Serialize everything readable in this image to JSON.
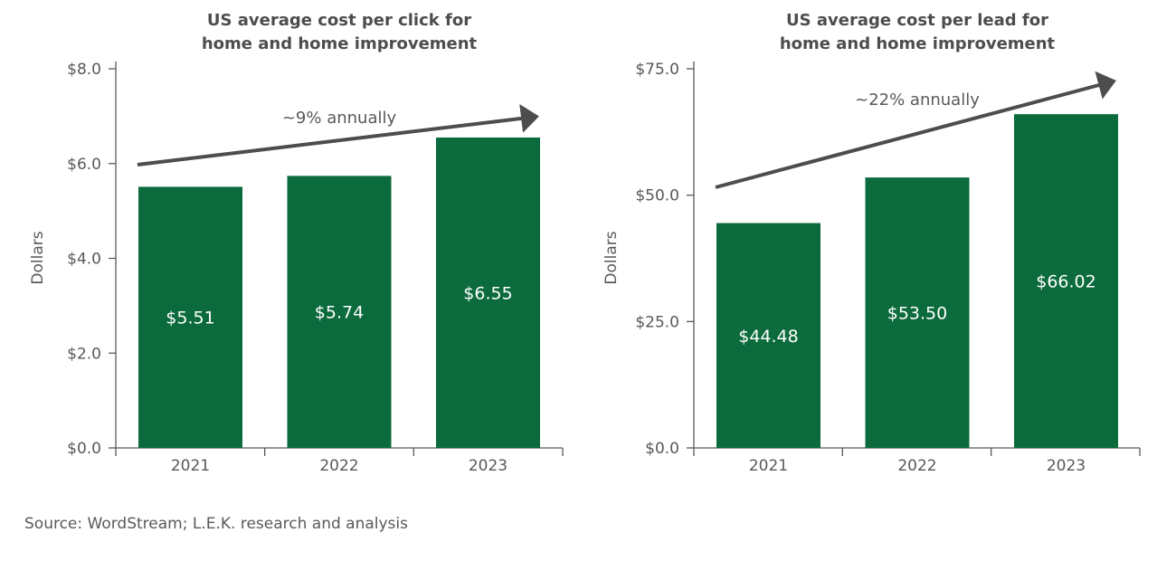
{
  "chart_data": [
    {
      "type": "bar",
      "title": [
        "US average cost per click for",
        "home and home improvement"
      ],
      "ylabel": "Dollars",
      "xlabel": "",
      "categories": [
        "2021",
        "2022",
        "2023"
      ],
      "values": [
        5.51,
        5.74,
        6.55
      ],
      "data_labels": [
        "$5.51",
        "$5.74",
        "$6.55"
      ],
      "ylim": [
        0,
        8
      ],
      "yticks": [
        0,
        2,
        4,
        6,
        8
      ],
      "ytick_labels": [
        "$0.0",
        "$2.0",
        "$4.0",
        "$6.0",
        "$8.0"
      ],
      "annotation": "~9% annually",
      "grid": false,
      "bar_color": "#0b6b3c"
    },
    {
      "type": "bar",
      "title": [
        "US average cost per lead for",
        "home and home improvement"
      ],
      "ylabel": "Dollars",
      "xlabel": "",
      "categories": [
        "2021",
        "2022",
        "2023"
      ],
      "values": [
        44.48,
        53.5,
        66.02
      ],
      "data_labels": [
        "$44.48",
        "$53.50",
        "$66.02"
      ],
      "ylim": [
        0,
        75
      ],
      "yticks": [
        0,
        25,
        50,
        75
      ],
      "ytick_labels": [
        "$0.0",
        "$25.0",
        "$50.0",
        "$75.0"
      ],
      "annotation": "~22% annually",
      "grid": false,
      "bar_color": "#0b6b3c"
    }
  ],
  "source": "Source: WordStream; L.E.K. research and analysis",
  "colors": {
    "axis": "#58595b",
    "arrow": "#4d4d4f"
  }
}
